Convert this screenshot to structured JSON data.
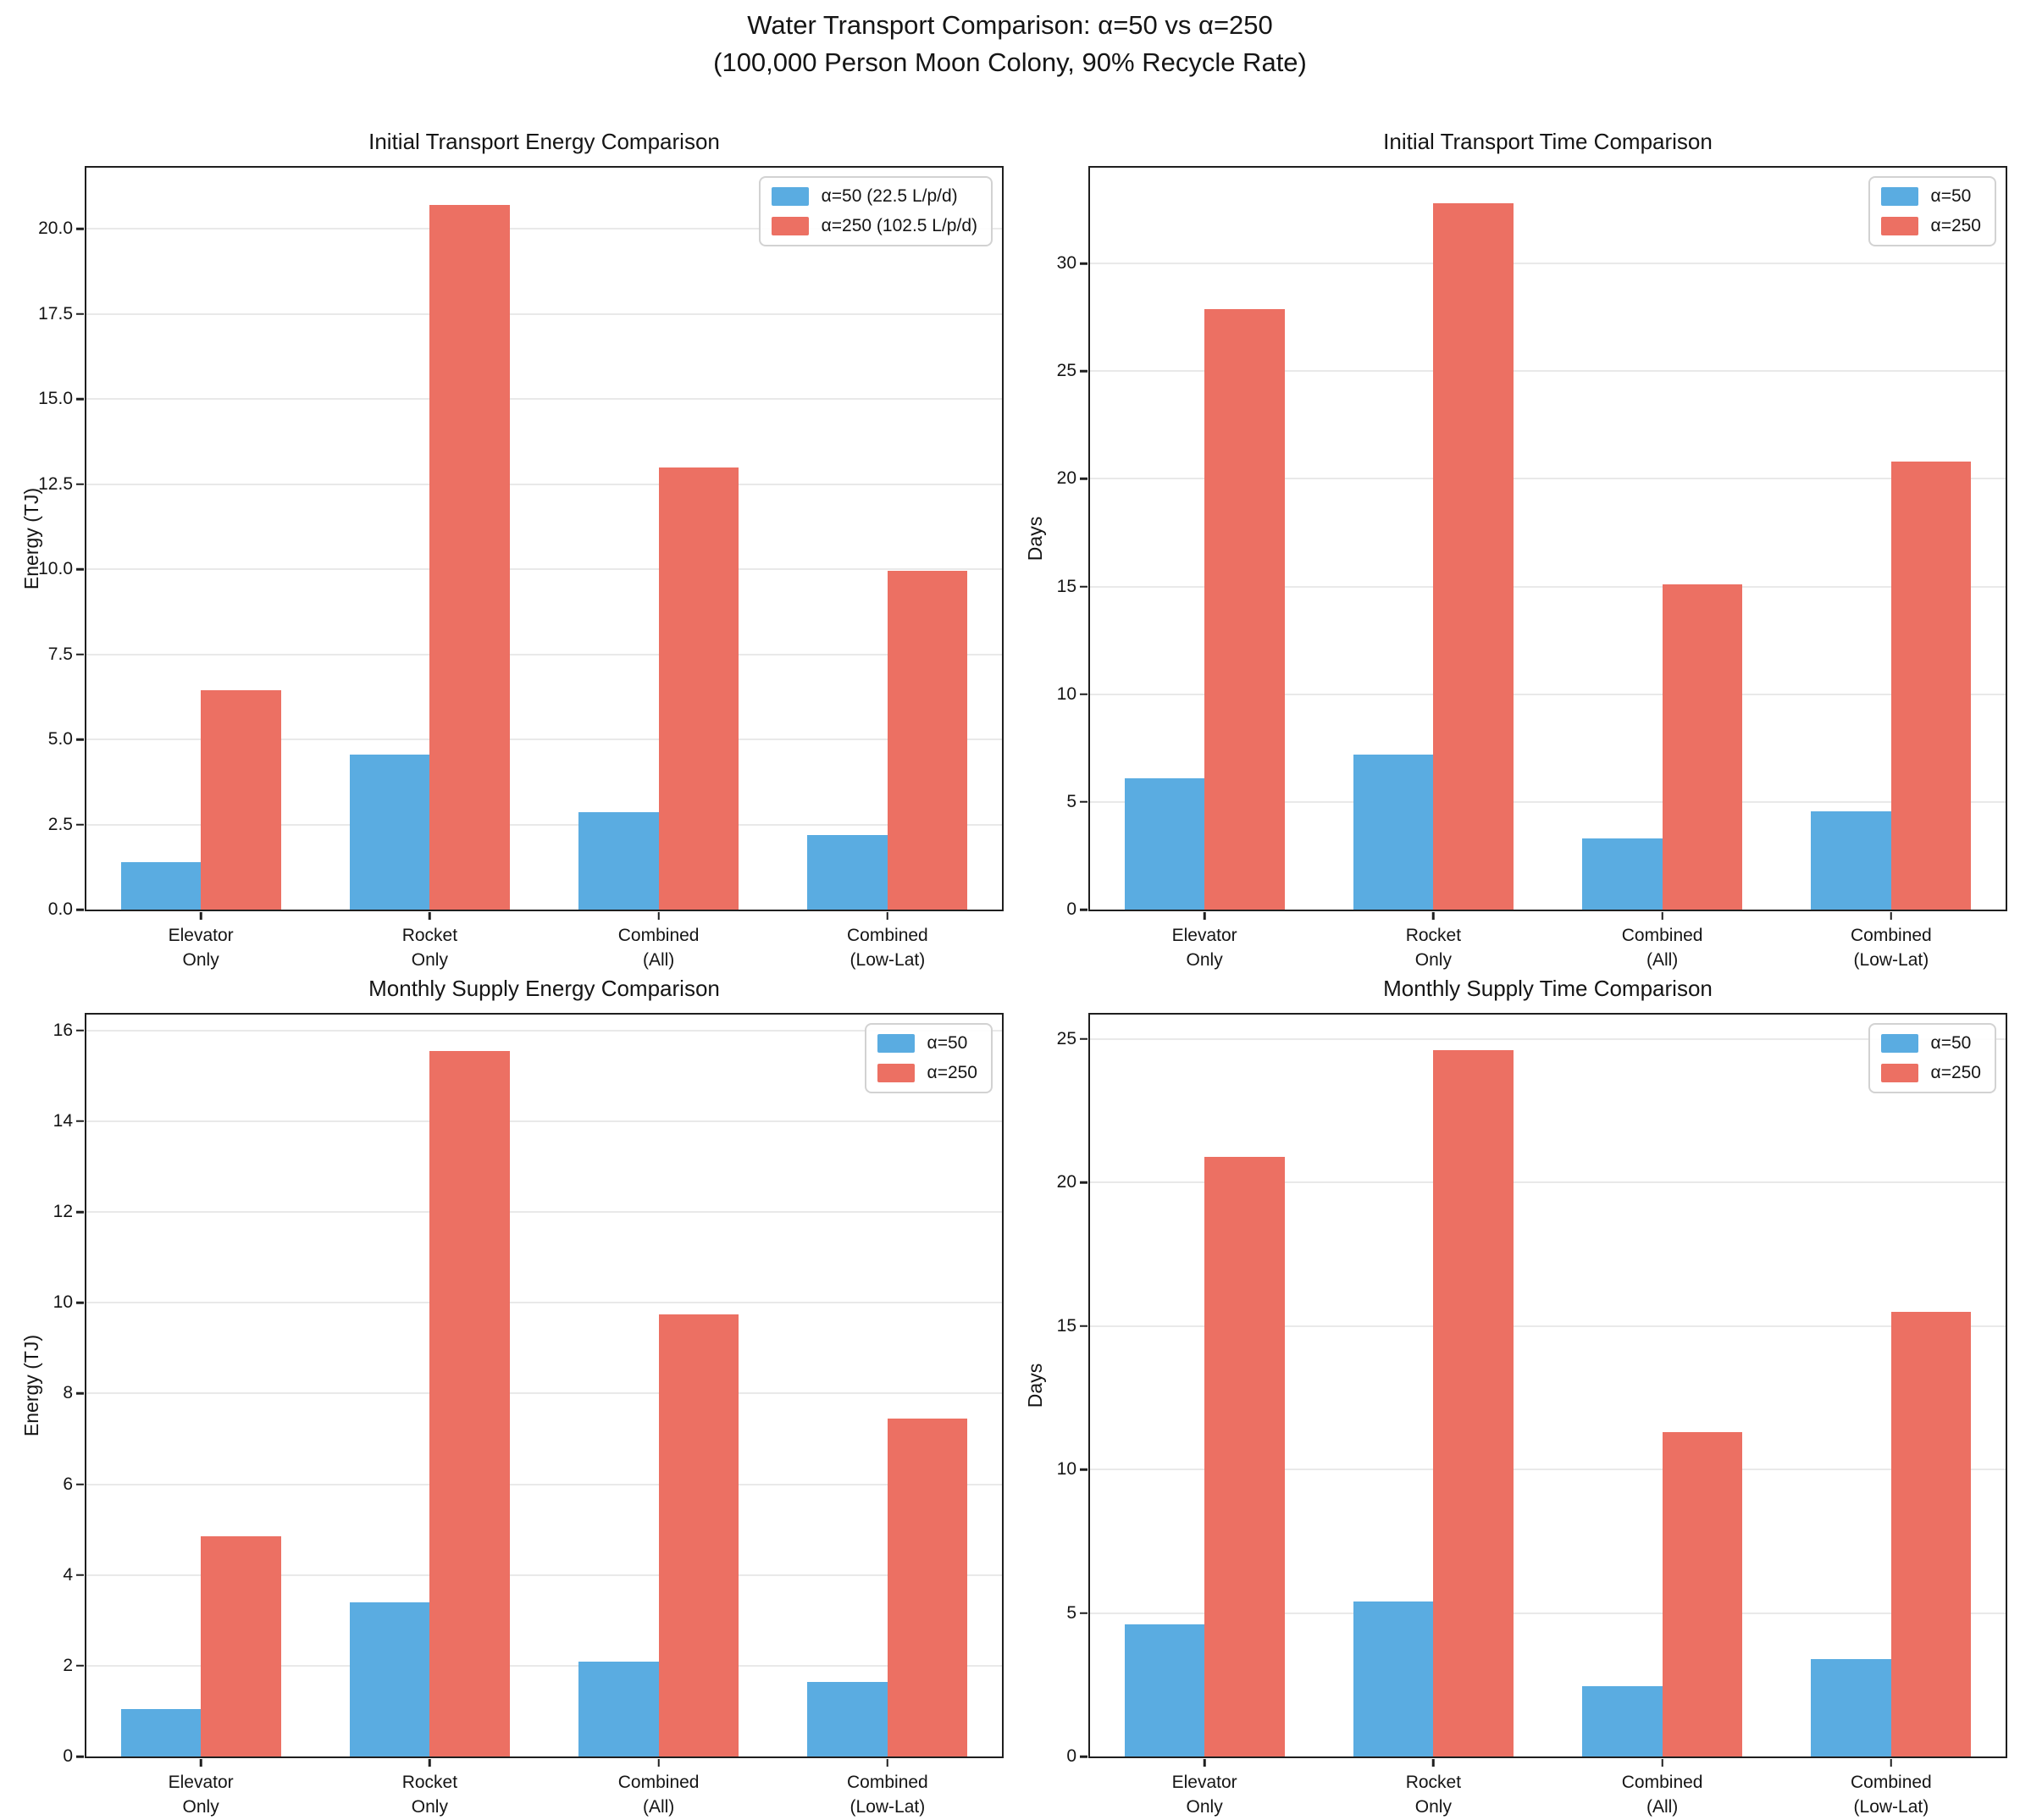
{
  "page_title": {
    "line1": "Water Transport Comparison: α=50 vs α=250",
    "line2": "(100,000 Person Moon Colony, 90% Recycle Rate)"
  },
  "colors": {
    "alpha50": "#5AACE1",
    "alpha250": "#EC7063",
    "grid": "#E9E9E9",
    "spine": "#1F1F1F",
    "text": "#151515"
  },
  "chart_data": [
    {
      "id": "initial-transport-energy",
      "type": "bar",
      "title": "Initial Transport Energy Comparison",
      "xlabel": "",
      "ylabel": "Energy (TJ)",
      "categories": [
        "Elevator\nOnly",
        "Rocket\nOnly",
        "Combined\n(All)",
        "Combined\n(Low-Lat)"
      ],
      "series": [
        {
          "name": "α=50 (22.5 L/p/d)",
          "color_key": "alpha50",
          "values": [
            1.4,
            4.55,
            2.85,
            2.2
          ]
        },
        {
          "name": "α=250 (102.5 L/p/d)",
          "color_key": "alpha250",
          "values": [
            6.45,
            20.7,
            13.0,
            9.95
          ]
        }
      ],
      "ylim": [
        0,
        21.8
      ],
      "ytick_values": [
        0,
        2.5,
        5,
        7.5,
        10,
        12.5,
        15,
        17.5,
        20
      ],
      "ytick_labels": [
        "0.0",
        "2.5",
        "5.0",
        "7.5",
        "10.0",
        "12.5",
        "15.0",
        "17.5",
        "20.0"
      ],
      "bar_width": 0.35,
      "grid": true,
      "legend_position": "top-right"
    },
    {
      "id": "initial-transport-time",
      "type": "bar",
      "title": "Initial Transport Time Comparison",
      "xlabel": "",
      "ylabel": "Days",
      "categories": [
        "Elevator\nOnly",
        "Rocket\nOnly",
        "Combined\n(All)",
        "Combined\n(Low-Lat)"
      ],
      "series": [
        {
          "name": "α=50",
          "color_key": "alpha50",
          "values": [
            6.1,
            7.2,
            3.3,
            4.55
          ]
        },
        {
          "name": "α=250",
          "color_key": "alpha250",
          "values": [
            27.9,
            32.8,
            15.1,
            20.8
          ]
        }
      ],
      "ylim": [
        0,
        34.45
      ],
      "ytick_values": [
        0,
        5,
        10,
        15,
        20,
        25,
        30
      ],
      "ytick_labels": [
        "0",
        "5",
        "10",
        "15",
        "20",
        "25",
        "30"
      ],
      "bar_width": 0.35,
      "grid": true,
      "legend_position": "top-right"
    },
    {
      "id": "monthly-supply-energy",
      "type": "bar",
      "title": "Monthly Supply Energy Comparison",
      "xlabel": "",
      "ylabel": "Energy (TJ)",
      "categories": [
        "Elevator\nOnly",
        "Rocket\nOnly",
        "Combined\n(All)",
        "Combined\n(Low-Lat)"
      ],
      "series": [
        {
          "name": "α=50",
          "color_key": "alpha50",
          "values": [
            1.05,
            3.4,
            2.1,
            1.65
          ]
        },
        {
          "name": "α=250",
          "color_key": "alpha250",
          "values": [
            4.85,
            15.55,
            9.75,
            7.45
          ]
        }
      ],
      "ylim": [
        0,
        16.35
      ],
      "ytick_values": [
        0,
        2,
        4,
        6,
        8,
        10,
        12,
        14,
        16
      ],
      "ytick_labels": [
        "0",
        "2",
        "4",
        "6",
        "8",
        "10",
        "12",
        "14",
        "16"
      ],
      "bar_width": 0.35,
      "grid": true,
      "legend_position": "top-right"
    },
    {
      "id": "monthly-supply-time",
      "type": "bar",
      "title": "Monthly Supply Time Comparison",
      "xlabel": "",
      "ylabel": "Days",
      "categories": [
        "Elevator\nOnly",
        "Rocket\nOnly",
        "Combined\n(All)",
        "Combined\n(Low-Lat)"
      ],
      "series": [
        {
          "name": "α=50",
          "color_key": "alpha50",
          "values": [
            4.6,
            5.4,
            2.45,
            3.4
          ]
        },
        {
          "name": "α=250",
          "color_key": "alpha250",
          "values": [
            20.9,
            24.6,
            11.3,
            15.5
          ]
        }
      ],
      "ylim": [
        0,
        25.85
      ],
      "ytick_values": [
        0,
        5,
        10,
        15,
        20,
        25
      ],
      "ytick_labels": [
        "0",
        "5",
        "10",
        "15",
        "20",
        "25"
      ],
      "bar_width": 0.35,
      "grid": true,
      "legend_position": "top-right"
    }
  ]
}
